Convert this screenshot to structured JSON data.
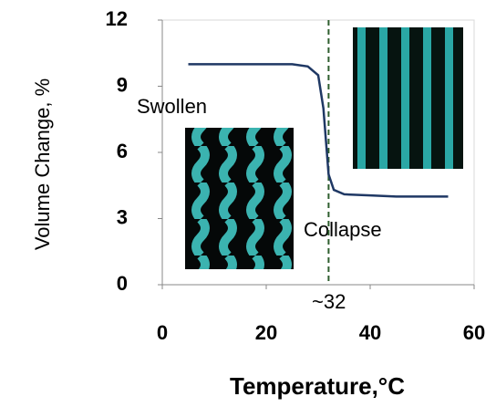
{
  "chart_data": {
    "type": "line",
    "x_label": "Temperature,°C",
    "y_label": "Volume Change, %",
    "x": [
      5,
      10,
      15,
      20,
      25,
      28,
      30,
      31,
      32,
      33,
      35,
      40,
      45,
      50,
      55
    ],
    "series": [
      {
        "color": "#1f3864",
        "values": [
          10,
          10,
          10,
          10,
          10,
          9.9,
          9.5,
          8,
          5,
          4.3,
          4.1,
          4.05,
          4,
          4,
          4
        ]
      }
    ],
    "xlim": [
      0,
      60
    ],
    "xticks": [
      0,
      20,
      40,
      60
    ],
    "ylim": [
      0,
      12
    ],
    "yticks": [
      0,
      3,
      6,
      9,
      12
    ],
    "vline": 32,
    "vline_color": "#2e5e2e",
    "annotations": [
      "Swollen",
      "Collapse",
      "~32"
    ]
  }
}
